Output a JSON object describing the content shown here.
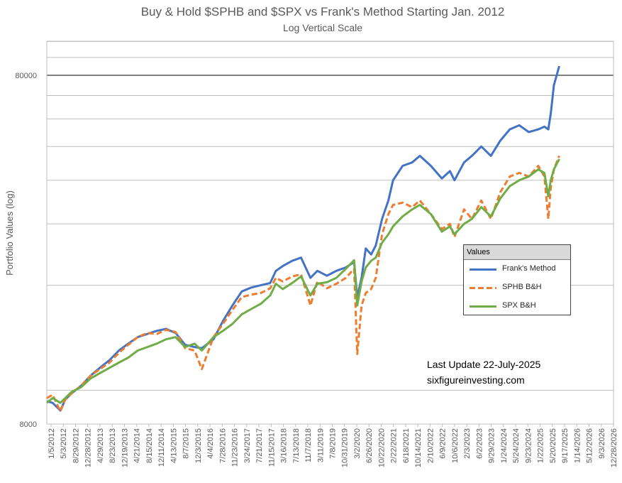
{
  "chart_data": {
    "type": "line",
    "title": "Buy & Hold $SPHB and $SPX vs Frank's Method Starting Jan. 2012",
    "subtitle": "Log Vertical Scale",
    "xlabel": "",
    "ylabel": "Portfolio Values (log)",
    "yscale": "log",
    "ylim": [
      8000,
      100000
    ],
    "xlim": [
      "2012-01-05",
      "2026-12-28"
    ],
    "y_tick_labels": [
      "80000",
      "8000"
    ],
    "x_tick_labels": [
      "1/5/2012",
      "5/3/2012",
      "8/29/2012",
      "12/28/2012",
      "4/29/2013",
      "8/23/2013",
      "12/19/2013",
      "4/21/2014",
      "8/15/2014",
      "12/11/2014",
      "4/13/2015",
      "8/7/2015",
      "12/3/2015",
      "4/4/2016",
      "7/28/2016",
      "11/23/2016",
      "3/24/2017",
      "7/21/2017",
      "11/15/2017",
      "3/16/2018",
      "7/13/2018",
      "11/7/2018",
      "3/11/2019",
      "7/8/2019",
      "10/31/2019",
      "3/2/2020",
      "6/26/2020",
      "10/22/2020",
      "2/22/2021",
      "6/18/2021",
      "10/14/2021",
      "2/10/2022",
      "6/9/2022",
      "10/6/2022",
      "2/3/2023",
      "6/2/2023",
      "9/29/2023",
      "1/24/2024",
      "5/24/2024",
      "9/23/2024",
      "1/22/2025",
      "5/20/2025",
      "9/17/2025",
      "1/14/2026",
      "5/12/2026",
      "9/3/2026",
      "12/28/2026"
    ],
    "grid": "horizontal",
    "legend_title": "Values",
    "legend_position": "right-center",
    "series": [
      {
        "name": "Frank's Method",
        "color": "#4472c4",
        "style": "solid",
        "x": [
          "2012-01-05",
          "2012-03-01",
          "2012-05-15",
          "2012-07-01",
          "2012-09-01",
          "2012-12-01",
          "2013-03-01",
          "2013-06-01",
          "2013-09-01",
          "2013-12-01",
          "2014-03-01",
          "2014-06-01",
          "2014-09-01",
          "2014-12-01",
          "2015-03-01",
          "2015-06-01",
          "2015-09-01",
          "2015-12-01",
          "2016-02-10",
          "2016-06-01",
          "2016-09-01",
          "2016-12-01",
          "2017-03-01",
          "2017-06-01",
          "2017-09-01",
          "2017-12-01",
          "2018-01-25",
          "2018-04-01",
          "2018-07-01",
          "2018-09-25",
          "2018-12-24",
          "2019-03-01",
          "2019-06-01",
          "2019-09-01",
          "2019-12-01",
          "2020-02-19",
          "2020-03-20",
          "2020-05-01",
          "2020-06-10",
          "2020-08-01",
          "2020-09-15",
          "2020-11-15",
          "2021-01-15",
          "2021-03-01",
          "2021-06-01",
          "2021-09-01",
          "2021-11-15",
          "2022-03-01",
          "2022-06-15",
          "2022-09-01",
          "2022-10-15",
          "2023-01-15",
          "2023-04-01",
          "2023-07-01",
          "2023-10-01",
          "2024-01-01",
          "2024-04-01",
          "2024-07-01",
          "2024-10-01",
          "2025-01-01",
          "2025-03-01",
          "2025-04-08",
          "2025-05-01",
          "2025-06-01",
          "2025-07-22"
        ],
        "y": [
          9300,
          9200,
          8750,
          9400,
          9800,
          10300,
          11000,
          11600,
          12200,
          13000,
          13600,
          14200,
          14500,
          14800,
          15000,
          14600,
          13500,
          13300,
          13200,
          14000,
          15800,
          17500,
          19200,
          19700,
          20000,
          20300,
          22000,
          22700,
          23500,
          24000,
          21000,
          22000,
          21300,
          22000,
          22500,
          23300,
          18500,
          21000,
          25500,
          24500,
          26000,
          31000,
          35000,
          40000,
          44000,
          45000,
          47000,
          44000,
          40500,
          42500,
          40000,
          45000,
          47000,
          50000,
          47000,
          52000,
          56000,
          57500,
          55000,
          56000,
          57000,
          56000,
          62000,
          75000,
          85000
        ]
      },
      {
        "name": "SPHB B&H",
        "color": "#ed7d31",
        "style": "dashed",
        "x": [
          "2012-01-05",
          "2012-03-01",
          "2012-05-15",
          "2012-07-01",
          "2012-09-01",
          "2012-12-01",
          "2013-03-01",
          "2013-06-01",
          "2013-09-01",
          "2013-12-01",
          "2014-03-01",
          "2014-06-01",
          "2014-09-01",
          "2014-12-01",
          "2015-03-01",
          "2015-06-01",
          "2015-09-01",
          "2015-12-01",
          "2016-02-10",
          "2016-06-01",
          "2016-09-01",
          "2016-12-01",
          "2017-03-01",
          "2017-06-01",
          "2017-09-01",
          "2017-12-01",
          "2018-01-25",
          "2018-04-01",
          "2018-07-01",
          "2018-09-25",
          "2018-12-24",
          "2019-03-01",
          "2019-06-01",
          "2019-09-01",
          "2019-12-01",
          "2020-02-19",
          "2020-03-20",
          "2020-05-01",
          "2020-06-10",
          "2020-08-01",
          "2020-09-15",
          "2020-11-15",
          "2021-01-15",
          "2021-03-01",
          "2021-06-01",
          "2021-09-01",
          "2021-11-15",
          "2022-03-01",
          "2022-06-15",
          "2022-09-01",
          "2022-10-15",
          "2023-01-15",
          "2023-04-01",
          "2023-07-01",
          "2023-10-01",
          "2024-01-01",
          "2024-04-01",
          "2024-07-01",
          "2024-10-01",
          "2025-01-01",
          "2025-03-01",
          "2025-04-08",
          "2025-05-01",
          "2025-06-01",
          "2025-07-22"
        ],
        "y": [
          9500,
          9700,
          8700,
          9400,
          9800,
          10300,
          11000,
          11500,
          12000,
          12800,
          13500,
          14200,
          14600,
          14500,
          14900,
          14700,
          13200,
          13000,
          11500,
          14200,
          15500,
          17000,
          18500,
          18800,
          19000,
          19600,
          21000,
          20500,
          21200,
          21500,
          17500,
          20500,
          19600,
          20200,
          21000,
          22300,
          12700,
          17500,
          19000,
          19500,
          21000,
          28000,
          32000,
          34000,
          34500,
          33500,
          35000,
          32000,
          29000,
          30000,
          27500,
          33000,
          31000,
          35000,
          31000,
          37000,
          41000,
          42000,
          41000,
          44000,
          41000,
          31000,
          38000,
          43000,
          47000
        ]
      },
      {
        "name": "SPX B&H",
        "color": "#70ad47",
        "style": "solid",
        "x": [
          "2012-01-05",
          "2012-03-01",
          "2012-05-15",
          "2012-07-01",
          "2012-09-01",
          "2012-12-01",
          "2013-03-01",
          "2013-06-01",
          "2013-09-01",
          "2013-12-01",
          "2014-03-01",
          "2014-06-01",
          "2014-09-01",
          "2014-12-01",
          "2015-03-01",
          "2015-06-01",
          "2015-09-01",
          "2015-12-01",
          "2016-02-10",
          "2016-06-01",
          "2016-09-01",
          "2016-12-01",
          "2017-03-01",
          "2017-06-01",
          "2017-09-01",
          "2017-12-01",
          "2018-01-25",
          "2018-04-01",
          "2018-07-01",
          "2018-09-25",
          "2018-12-24",
          "2019-03-01",
          "2019-06-01",
          "2019-09-01",
          "2019-12-01",
          "2020-02-19",
          "2020-03-20",
          "2020-05-01",
          "2020-06-10",
          "2020-08-01",
          "2020-09-15",
          "2020-11-15",
          "2021-01-15",
          "2021-03-01",
          "2021-06-01",
          "2021-09-01",
          "2021-11-15",
          "2022-03-01",
          "2022-06-15",
          "2022-09-01",
          "2022-10-15",
          "2023-01-15",
          "2023-04-01",
          "2023-07-01",
          "2023-10-01",
          "2024-01-01",
          "2024-04-01",
          "2024-07-01",
          "2024-10-01",
          "2025-01-01",
          "2025-03-01",
          "2025-04-08",
          "2025-05-01",
          "2025-06-01",
          "2025-07-22"
        ],
        "y": [
          9200,
          9500,
          9200,
          9500,
          9900,
          10200,
          10800,
          11200,
          11600,
          12000,
          12400,
          13000,
          13300,
          13600,
          14000,
          14200,
          13300,
          13600,
          13000,
          14200,
          14800,
          15500,
          16500,
          17100,
          17700,
          18700,
          20200,
          19500,
          20300,
          21200,
          18700,
          20200,
          20400,
          21000,
          22300,
          23600,
          17500,
          20500,
          22500,
          23500,
          24000,
          26500,
          28000,
          29500,
          31500,
          33000,
          34000,
          32000,
          28500,
          29500,
          28000,
          30000,
          31000,
          33500,
          31500,
          35500,
          38500,
          40000,
          41000,
          43000,
          42000,
          36000,
          40000,
          43000,
          46000
        ]
      }
    ]
  },
  "annotations": {
    "update": "Last Update 22-July-2025",
    "site": "sixfigureinvesting.com"
  }
}
